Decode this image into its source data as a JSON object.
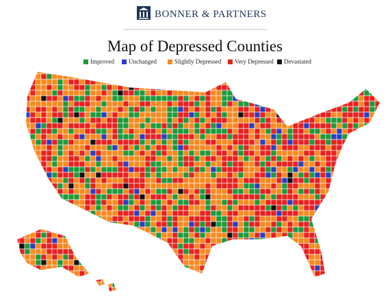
{
  "header": {
    "brand": "BONNER & PARTNERS"
  },
  "title": "Map of Depressed Counties",
  "legend": [
    {
      "label": "Improved",
      "color": "#1e9a3a"
    },
    {
      "label": "Unchanged",
      "color": "#2a3fbf"
    },
    {
      "label": "Slightly Depressed",
      "color": "#f7891f"
    },
    {
      "label": "Very Depressed",
      "color": "#e8211f"
    },
    {
      "label": "Devastated",
      "color": "#111111"
    }
  ]
}
